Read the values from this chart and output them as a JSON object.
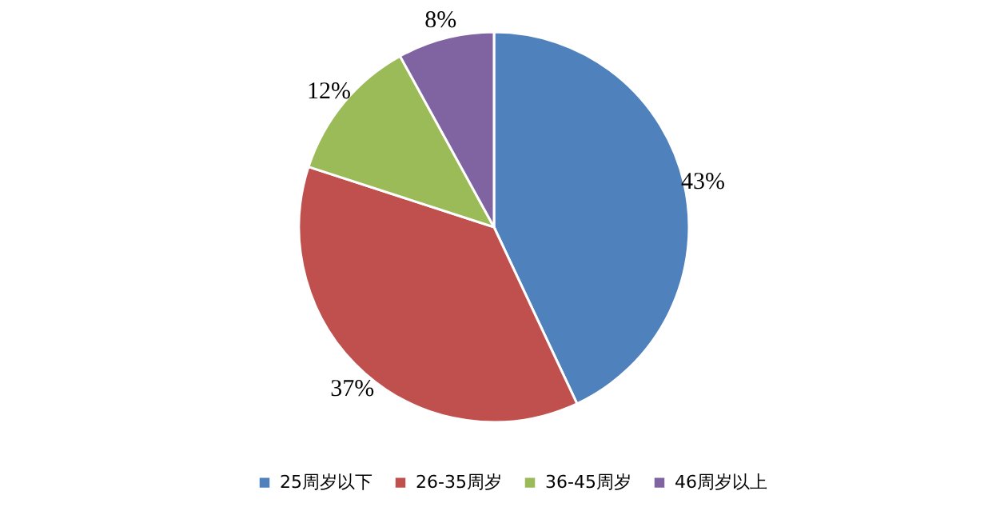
{
  "chart_data": {
    "type": "pie",
    "categories": [
      "25周岁以下",
      "26-35周岁",
      "36-45周岁",
      "46周岁以上"
    ],
    "values": [
      43,
      37,
      12,
      8
    ],
    "colors": [
      "#4f81bd",
      "#c0504d",
      "#9bbb59",
      "#8064a2"
    ],
    "value_labels": [
      "43%",
      "37%",
      "12%",
      "8%"
    ],
    "legend": "bottom"
  }
}
